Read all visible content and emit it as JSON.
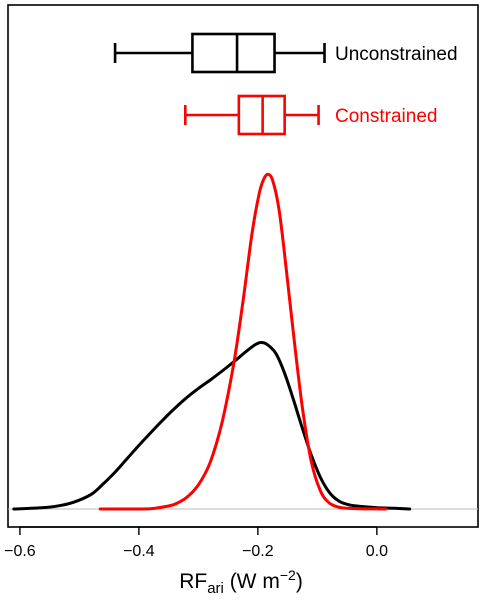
{
  "chart_data": {
    "type": "density",
    "xlim": [
      -0.62,
      0.17
    ],
    "xticks": [
      {
        "value": -0.6,
        "label": "−0.6"
      },
      {
        "value": -0.4,
        "label": "−0.4"
      },
      {
        "value": -0.2,
        "label": "−0.2"
      },
      {
        "value": 0.0,
        "label": "0.0"
      }
    ],
    "xlabel": {
      "main": "RF",
      "subscript": "ari",
      "units": " (W m",
      "superscript": "−2",
      "close": ")"
    },
    "baseline": 0,
    "ymax": 1.0,
    "series": [
      {
        "name": "Unconstrained",
        "color": "#000000",
        "box": {
          "min": -0.44,
          "q1": -0.31,
          "median": -0.235,
          "q3": -0.172,
          "max": -0.088
        },
        "density": [
          [
            -0.61,
            0.0
          ],
          [
            -0.57,
            0.003
          ],
          [
            -0.54,
            0.008
          ],
          [
            -0.51,
            0.02
          ],
          [
            -0.48,
            0.044
          ],
          [
            -0.46,
            0.075
          ],
          [
            -0.44,
            0.11
          ],
          [
            -0.42,
            0.15
          ],
          [
            -0.4,
            0.19
          ],
          [
            -0.38,
            0.228
          ],
          [
            -0.36,
            0.265
          ],
          [
            -0.34,
            0.3
          ],
          [
            -0.32,
            0.332
          ],
          [
            -0.3,
            0.36
          ],
          [
            -0.28,
            0.385
          ],
          [
            -0.26,
            0.412
          ],
          [
            -0.24,
            0.44
          ],
          [
            -0.22,
            0.47
          ],
          [
            -0.205,
            0.49
          ],
          [
            -0.195,
            0.497
          ],
          [
            -0.185,
            0.492
          ],
          [
            -0.17,
            0.465
          ],
          [
            -0.155,
            0.405
          ],
          [
            -0.14,
            0.325
          ],
          [
            -0.125,
            0.24
          ],
          [
            -0.11,
            0.16
          ],
          [
            -0.095,
            0.095
          ],
          [
            -0.08,
            0.05
          ],
          [
            -0.065,
            0.025
          ],
          [
            -0.05,
            0.014
          ],
          [
            -0.03,
            0.008
          ],
          [
            0.0,
            0.004
          ],
          [
            0.03,
            0.002
          ],
          [
            0.055,
            0.0
          ]
        ]
      },
      {
        "name": "Constrained",
        "color": "#ff0000",
        "box": {
          "min": -0.322,
          "q1": -0.232,
          "median": -0.192,
          "q3": -0.155,
          "max": -0.098
        },
        "density": [
          [
            -0.465,
            0.0
          ],
          [
            -0.42,
            0.0
          ],
          [
            -0.38,
            0.001
          ],
          [
            -0.36,
            0.006
          ],
          [
            -0.34,
            0.014
          ],
          [
            -0.32,
            0.034
          ],
          [
            -0.3,
            0.072
          ],
          [
            -0.28,
            0.14
          ],
          [
            -0.26,
            0.26
          ],
          [
            -0.24,
            0.44
          ],
          [
            -0.225,
            0.62
          ],
          [
            -0.21,
            0.82
          ],
          [
            -0.198,
            0.94
          ],
          [
            -0.19,
            0.985
          ],
          [
            -0.183,
            0.999
          ],
          [
            -0.175,
            0.98
          ],
          [
            -0.165,
            0.9
          ],
          [
            -0.155,
            0.76
          ],
          [
            -0.14,
            0.52
          ],
          [
            -0.125,
            0.3
          ],
          [
            -0.11,
            0.14
          ],
          [
            -0.095,
            0.055
          ],
          [
            -0.08,
            0.018
          ],
          [
            -0.06,
            0.004
          ],
          [
            -0.03,
            0.001
          ],
          [
            0.015,
            0.0
          ]
        ]
      }
    ]
  }
}
